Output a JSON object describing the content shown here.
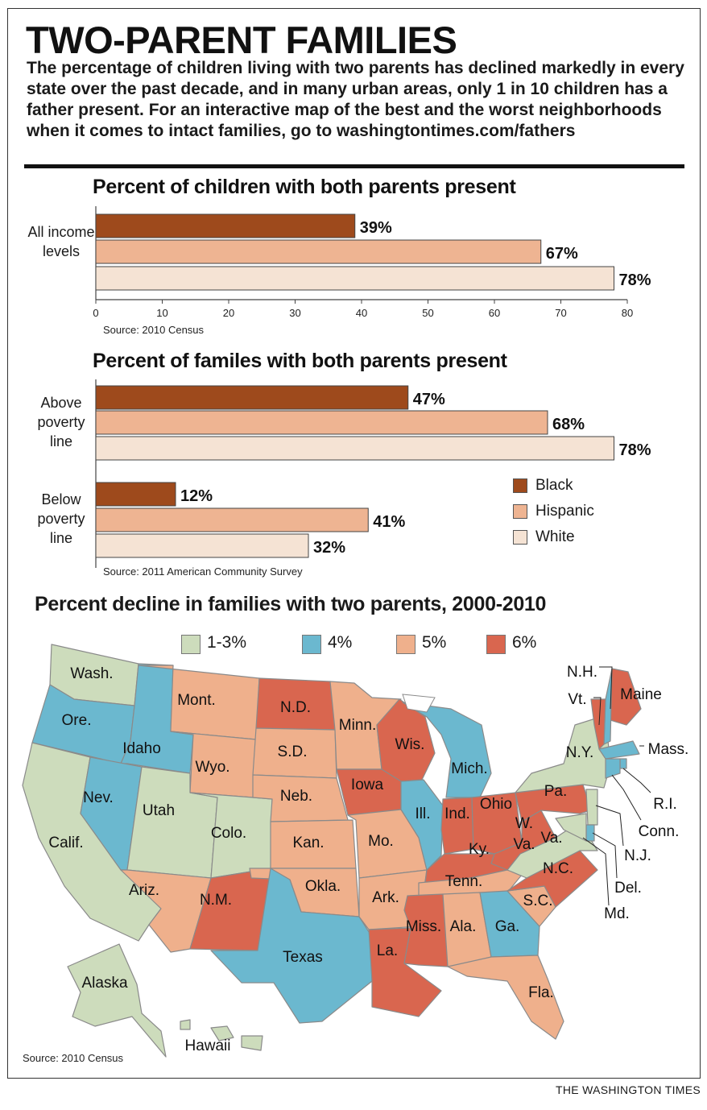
{
  "header": {
    "title": "TWO-PARENT FAMILIES",
    "intro": "The percentage of children living with two parents has declined markedly in every state over the past decade, and in many urban areas, only 1 in 10 children has a father present. For an interactive map of the best and the worst neighborhoods when it comes to intact families, go to washingtontimes.com/fathers"
  },
  "colors": {
    "Black": "#9e4a1c",
    "Hispanic": "#eeb492",
    "White": "#f5e3d4",
    "c13": "#cddcbc",
    "c4": "#6bb8cf",
    "c5": "#efb08c",
    "c6": "#d9664f"
  },
  "chart_data": [
    {
      "type": "bar",
      "orientation": "horizontal",
      "title": "Percent of children with both parents present",
      "categories": [
        "All income levels"
      ],
      "series": [
        {
          "name": "Black",
          "values": [
            39
          ]
        },
        {
          "name": "Hispanic",
          "values": [
            67
          ]
        },
        {
          "name": "White",
          "values": [
            78
          ]
        }
      ],
      "data_labels": [
        [
          "39%"
        ],
        [
          "67%"
        ],
        [
          "78%"
        ]
      ],
      "xlim": [
        0,
        80
      ],
      "xticks": [
        "0",
        "10",
        "20",
        "30",
        "40",
        "50",
        "60",
        "70",
        "80"
      ],
      "source": "Source: 2010 Census"
    },
    {
      "type": "bar",
      "orientation": "horizontal",
      "title": "Percent of familes with both parents present",
      "categories": [
        "Above poverty line",
        "Below poverty line"
      ],
      "series": [
        {
          "name": "Black",
          "values": [
            47,
            12
          ]
        },
        {
          "name": "Hispanic",
          "values": [
            68,
            41
          ]
        },
        {
          "name": "White",
          "values": [
            78,
            32
          ]
        }
      ],
      "data_labels": [
        [
          "47%",
          "12%"
        ],
        [
          "68%",
          "41%"
        ],
        [
          "78%",
          "32%"
        ]
      ],
      "xlim": [
        0,
        80
      ],
      "legend": [
        "Black",
        "Hispanic",
        "White"
      ],
      "legend_position": "right",
      "source": "Source: 2011 American Community Survey"
    },
    {
      "type": "map",
      "title": "Percent decline in families with two parents, 2000-2010",
      "legend": [
        "1-3%",
        "4%",
        "5%",
        "6%"
      ],
      "states": [
        {
          "name": "Wash.",
          "decline": "1-3%"
        },
        {
          "name": "Ore.",
          "decline": "4%"
        },
        {
          "name": "Calif.",
          "decline": "1-3%"
        },
        {
          "name": "Idaho",
          "decline": "4%"
        },
        {
          "name": "Nev.",
          "decline": "4%"
        },
        {
          "name": "Mont.",
          "decline": "5%"
        },
        {
          "name": "Wyo.",
          "decline": "5%"
        },
        {
          "name": "Utah",
          "decline": "1-3%"
        },
        {
          "name": "Colo.",
          "decline": "1-3%"
        },
        {
          "name": "Ariz.",
          "decline": "5%"
        },
        {
          "name": "N.M.",
          "decline": "6%"
        },
        {
          "name": "N.D.",
          "decline": "6%"
        },
        {
          "name": "S.D.",
          "decline": "5%"
        },
        {
          "name": "Neb.",
          "decline": "5%"
        },
        {
          "name": "Kan.",
          "decline": "5%"
        },
        {
          "name": "Okla.",
          "decline": "5%"
        },
        {
          "name": "Texas",
          "decline": "4%"
        },
        {
          "name": "Minn.",
          "decline": "5%"
        },
        {
          "name": "Iowa",
          "decline": "6%"
        },
        {
          "name": "Mo.",
          "decline": "5%"
        },
        {
          "name": "Ark.",
          "decline": "5%"
        },
        {
          "name": "La.",
          "decline": "6%"
        },
        {
          "name": "Wis.",
          "decline": "6%"
        },
        {
          "name": "Ill.",
          "decline": "4%"
        },
        {
          "name": "Mich.",
          "decline": "4%"
        },
        {
          "name": "Ind.",
          "decline": "6%"
        },
        {
          "name": "Ohio",
          "decline": "6%"
        },
        {
          "name": "Ky.",
          "decline": "6%"
        },
        {
          "name": "Tenn.",
          "decline": "5%"
        },
        {
          "name": "Miss.",
          "decline": "6%"
        },
        {
          "name": "Ala.",
          "decline": "5%"
        },
        {
          "name": "Ga.",
          "decline": "4%"
        },
        {
          "name": "Fla.",
          "decline": "5%"
        },
        {
          "name": "S.C.",
          "decline": "5%"
        },
        {
          "name": "N.C.",
          "decline": "6%"
        },
        {
          "name": "Va.",
          "decline": "1-3%"
        },
        {
          "name": "W. Va.",
          "decline": "6%"
        },
        {
          "name": "Pa.",
          "decline": "6%"
        },
        {
          "name": "N.Y.",
          "decline": "1-3%"
        },
        {
          "name": "Maine",
          "decline": "6%"
        },
        {
          "name": "N.H.",
          "decline": "4%"
        },
        {
          "name": "Vt.",
          "decline": "6%"
        },
        {
          "name": "Mass.",
          "decline": "4%"
        },
        {
          "name": "R.I.",
          "decline": "4%"
        },
        {
          "name": "Conn.",
          "decline": "4%"
        },
        {
          "name": "N.J.",
          "decline": "1-3%"
        },
        {
          "name": "Del.",
          "decline": "4%"
        },
        {
          "name": "Md.",
          "decline": "1-3%"
        },
        {
          "name": "Alaska",
          "decline": "1-3%"
        },
        {
          "name": "Hawaii",
          "decline": "1-3%"
        }
      ],
      "source": "Source: 2010 Census"
    }
  ],
  "credit": "THE WASHINGTON TIMES"
}
